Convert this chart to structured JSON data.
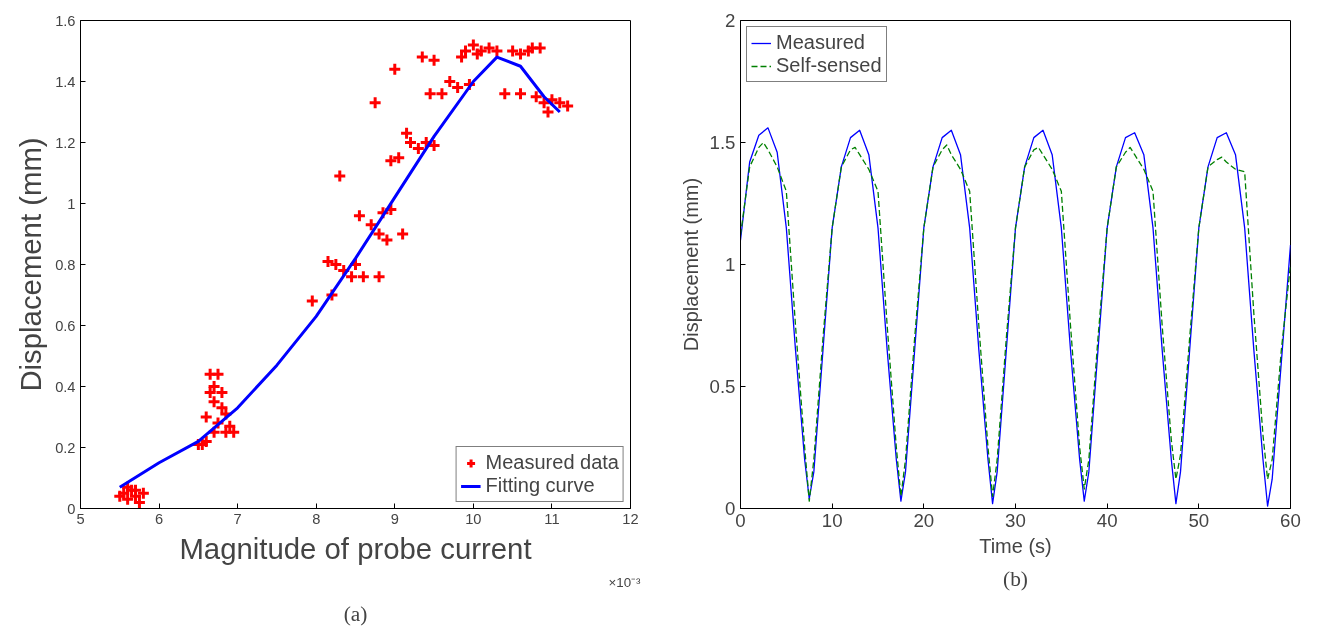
{
  "chart_data": [
    {
      "type": "scatter",
      "xlabel": "Magnitude of probe current",
      "ylabel": "Displacement (mm)",
      "xlim": [
        5,
        12
      ],
      "ylim": [
        0,
        1.6
      ],
      "xticks": [
        5,
        6,
        7,
        8,
        9,
        10,
        11,
        12
      ],
      "yticks": [
        0,
        0.2,
        0.4,
        0.6,
        0.8,
        1,
        1.2,
        1.4,
        1.6
      ],
      "grid": false,
      "legend": "bottom right",
      "annotations": [
        "×10⁻³",
        "(a)"
      ],
      "series": [
        {
          "name": "Measured data",
          "type": "scatter",
          "marker": "cross",
          "color": "#ff0000",
          "x": [
            5.5,
            5.55,
            5.6,
            5.6,
            5.65,
            5.7,
            5.7,
            5.75,
            5.8,
            6.5,
            6.55,
            6.6,
            6.6,
            6.65,
            6.65,
            6.7,
            6.7,
            6.7,
            6.75,
            6.75,
            6.8,
            6.8,
            6.85,
            6.85,
            6.9,
            6.95,
            7.95,
            8.15,
            8.2,
            8.25,
            8.3,
            8.35,
            8.45,
            8.5,
            8.55,
            8.6,
            8.7,
            8.75,
            8.8,
            8.8,
            8.85,
            8.9,
            8.95,
            8.95,
            9.0,
            9.05,
            9.1,
            9.15,
            9.2,
            9.3,
            9.35,
            9.4,
            9.45,
            9.5,
            9.5,
            9.6,
            9.7,
            9.8,
            9.85,
            9.9,
            9.95,
            10.0,
            10.05,
            10.1,
            10.2,
            10.3,
            10.4,
            10.5,
            10.6,
            10.6,
            10.7,
            10.75,
            10.8,
            10.85,
            10.9,
            10.95,
            11.0,
            11.1,
            11.2
          ],
          "values": [
            0.04,
            0.05,
            0.03,
            0.07,
            0.06,
            0.04,
            0.06,
            0.02,
            0.05,
            0.21,
            0.21,
            0.3,
            0.22,
            0.38,
            0.44,
            0.4,
            0.35,
            0.25,
            0.44,
            0.28,
            0.38,
            0.33,
            0.25,
            0.31,
            0.27,
            0.25,
            0.68,
            0.81,
            0.7,
            0.8,
            1.09,
            0.78,
            0.76,
            0.8,
            0.96,
            0.76,
            0.93,
            1.33,
            0.76,
            0.9,
            0.97,
            0.88,
            0.98,
            1.14,
            1.44,
            1.15,
            0.9,
            1.23,
            1.2,
            1.18,
            1.48,
            1.2,
            1.36,
            1.19,
            1.47,
            1.36,
            1.4,
            1.38,
            1.48,
            1.5,
            1.39,
            1.52,
            1.49,
            1.5,
            1.51,
            1.5,
            1.36,
            1.5,
            1.49,
            1.36,
            1.5,
            1.51,
            1.35,
            1.51,
            1.33,
            1.3,
            1.34,
            1.33,
            1.32
          ]
        },
        {
          "name": "Fitting curve",
          "type": "line",
          "line_style": "solid",
          "color": "#0000ff",
          "x": [
            5.5,
            6,
            6.5,
            7,
            7.5,
            8,
            8.5,
            9,
            9.5,
            10,
            10.3,
            10.6,
            10.9,
            11.1
          ],
          "values": [
            0.07,
            0.15,
            0.22,
            0.33,
            0.47,
            0.63,
            0.82,
            1.02,
            1.22,
            1.4,
            1.48,
            1.45,
            1.35,
            1.3
          ]
        }
      ]
    },
    {
      "type": "line",
      "xlabel": "Time (s)",
      "ylabel": "Displacement (mm)",
      "xlim": [
        0,
        60
      ],
      "ylim": [
        0,
        2
      ],
      "xticks": [
        0,
        10,
        20,
        30,
        40,
        50,
        60
      ],
      "yticks": [
        0,
        0.5,
        1,
        1.5,
        2
      ],
      "grid": false,
      "legend": "top left",
      "annotations": [
        "(b)"
      ],
      "series": [
        {
          "name": "Measured",
          "line_style": "solid",
          "color": "#0000ff",
          "x": [
            0,
            1,
            2,
            3,
            4,
            5,
            6,
            7,
            7.5,
            8,
            9,
            10,
            11,
            12,
            13,
            14,
            15,
            16,
            17,
            17.5,
            18,
            19,
            20,
            21,
            22,
            23,
            24,
            25,
            26,
            27,
            27.5,
            28,
            29,
            30,
            31,
            32,
            33,
            34,
            35,
            36,
            37,
            37.5,
            38,
            39,
            40,
            41,
            42,
            43,
            44,
            45,
            46,
            47,
            47.5,
            48,
            49,
            50,
            51,
            52,
            53,
            54,
            55,
            56,
            57,
            57.5,
            58,
            59,
            60
          ],
          "values": [
            1.1,
            1.42,
            1.53,
            1.56,
            1.46,
            1.15,
            0.65,
            0.2,
            0.04,
            0.15,
            0.65,
            1.15,
            1.4,
            1.52,
            1.55,
            1.45,
            1.15,
            0.65,
            0.2,
            0.03,
            0.15,
            0.65,
            1.15,
            1.4,
            1.52,
            1.55,
            1.45,
            1.15,
            0.65,
            0.2,
            0.02,
            0.15,
            0.65,
            1.15,
            1.4,
            1.52,
            1.55,
            1.45,
            1.15,
            0.65,
            0.2,
            0.03,
            0.15,
            0.65,
            1.15,
            1.4,
            1.52,
            1.54,
            1.45,
            1.15,
            0.65,
            0.2,
            0.02,
            0.15,
            0.65,
            1.15,
            1.4,
            1.52,
            1.54,
            1.45,
            1.15,
            0.65,
            0.2,
            0.01,
            0.12,
            0.6,
            1.08
          ]
        },
        {
          "name": "Self-sensed",
          "line_style": "dashed",
          "color": "#008000",
          "x": [
            0,
            1,
            2,
            2.5,
            3,
            4,
            5,
            6,
            7,
            7.5,
            8,
            9,
            10,
            11,
            12,
            12.5,
            13,
            14,
            15,
            16,
            17,
            17.5,
            18,
            19,
            20,
            21,
            22,
            22.5,
            23,
            24,
            25,
            26,
            27,
            27.5,
            28,
            29,
            30,
            31,
            32,
            32.5,
            33,
            34,
            35,
            36,
            37,
            37.5,
            38,
            39,
            40,
            41,
            42,
            42.5,
            43,
            44,
            45,
            46,
            47,
            47.5,
            48,
            49,
            50,
            51,
            52,
            52.5,
            53,
            54,
            55,
            56,
            57,
            57.5,
            58,
            59,
            60
          ],
          "values": [
            1.12,
            1.4,
            1.48,
            1.5,
            1.47,
            1.4,
            1.3,
            0.75,
            0.25,
            0.03,
            0.2,
            0.7,
            1.15,
            1.4,
            1.47,
            1.48,
            1.45,
            1.39,
            1.3,
            0.75,
            0.25,
            0.05,
            0.2,
            0.7,
            1.15,
            1.4,
            1.47,
            1.49,
            1.45,
            1.39,
            1.3,
            0.75,
            0.25,
            0.05,
            0.2,
            0.7,
            1.15,
            1.4,
            1.47,
            1.48,
            1.45,
            1.39,
            1.3,
            0.75,
            0.25,
            0.08,
            0.2,
            0.7,
            1.15,
            1.4,
            1.46,
            1.48,
            1.45,
            1.39,
            1.3,
            0.75,
            0.28,
            0.12,
            0.22,
            0.7,
            1.15,
            1.4,
            1.43,
            1.44,
            1.42,
            1.39,
            1.38,
            0.8,
            0.3,
            0.12,
            0.2,
            0.65,
            1.0
          ]
        }
      ]
    }
  ]
}
